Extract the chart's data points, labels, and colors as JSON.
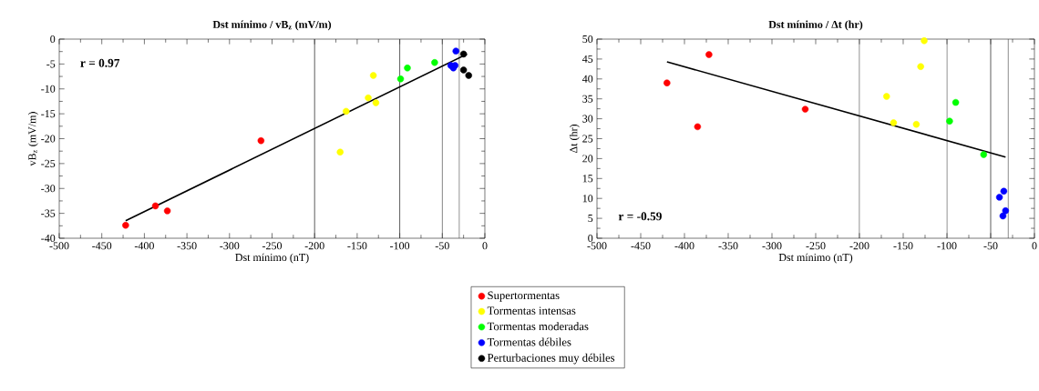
{
  "chart_data": [
    {
      "type": "scatter",
      "title": "Dst mínimo / vB$_{z}$ (mV/m)",
      "xlabel": "Dst mínimo (nT)",
      "ylabel": "vB$_{z}$ (mV/m)",
      "annotations": [
        "r = 0.97"
      ],
      "xlim": [
        -500,
        0
      ],
      "ylim": [
        -40,
        0
      ],
      "xticks": [
        -500,
        -450,
        -400,
        -350,
        -300,
        -250,
        -200,
        -150,
        -100,
        -50,
        0
      ],
      "yticks": [
        -40,
        -35,
        -30,
        -25,
        -20,
        -15,
        -10,
        -5,
        0
      ],
      "marker": "circle",
      "grid": false,
      "legend": "bottom",
      "ref_lines": [
        {
          "axis": "x",
          "value": -200
        },
        {
          "axis": "x",
          "value": -100
        },
        {
          "axis": "x",
          "value": -50
        },
        {
          "axis": "x",
          "value": -30
        }
      ],
      "series": [
        {
          "name": "Supertormentas",
          "color": "#ff0000",
          "x": [
            -422,
            -387,
            -373,
            -263
          ],
          "values": [
            -37.4,
            -33.5,
            -34.5,
            -20.4
          ]
        },
        {
          "name": "Tormentas intensas",
          "color": "#ffff00",
          "x": [
            -170,
            -163,
            -137,
            -128,
            -131
          ],
          "values": [
            -22.7,
            -14.5,
            -11.8,
            -12.8,
            -7.3
          ]
        },
        {
          "name": "Tormentas moderadas",
          "color": "#00ff00",
          "x": [
            -99,
            -91,
            -59
          ],
          "values": [
            -8.0,
            -5.8,
            -4.7
          ]
        },
        {
          "name": "Tormentas débiles",
          "color": "#0000ff",
          "x": [
            -34,
            -40,
            -37,
            -35
          ],
          "values": [
            -2.4,
            -5.3,
            -5.8,
            -5.3
          ]
        },
        {
          "name": "Perturbaciones muy débiles",
          "color": "#000000",
          "x": [
            -25,
            -25,
            -19
          ],
          "values": [
            -3.0,
            -6.2,
            -7.3
          ]
        },
        {
          "type": "line",
          "marker": "none",
          "color": "#000000",
          "x": [
            -422,
            -21
          ],
          "values": [
            -36.5,
            -3.0
          ]
        }
      ]
    },
    {
      "type": "scatter",
      "title": "Dst mínimo / Δt (hr)",
      "xlabel": "Dst mínimo (nT)",
      "ylabel": "Δt (hr)",
      "annotations": [
        "r = -0.59"
      ],
      "xlim": [
        -500,
        0
      ],
      "ylim": [
        0,
        50
      ],
      "xticks": [
        -500,
        -450,
        -400,
        -350,
        -300,
        -250,
        -200,
        -150,
        -100,
        -50,
        0
      ],
      "yticks": [
        0,
        5,
        10,
        15,
        20,
        25,
        30,
        35,
        40,
        45,
        50
      ],
      "marker": "circle",
      "grid": false,
      "ref_lines": [
        {
          "axis": "x",
          "value": -200
        },
        {
          "axis": "x",
          "value": -100
        },
        {
          "axis": "x",
          "value": -50
        },
        {
          "axis": "x",
          "value": -30
        }
      ],
      "series": [
        {
          "color": "#ff0000",
          "x": [
            -420,
            -385,
            -372,
            -262
          ],
          "values": [
            39.0,
            28.0,
            46.1,
            32.4
          ]
        },
        {
          "color": "#ffff00",
          "x": [
            -169,
            -161,
            -135,
            -130,
            -126
          ],
          "values": [
            35.6,
            29.0,
            28.6,
            43.1,
            49.6
          ]
        },
        {
          "color": "#00ff00",
          "x": [
            -97,
            -90,
            -58
          ],
          "values": [
            29.4,
            34.1,
            21.0
          ]
        },
        {
          "color": "#0000ff",
          "x": [
            -40,
            -35,
            -36,
            -33
          ],
          "values": [
            10.3,
            11.8,
            5.6,
            6.9
          ]
        },
        {
          "type": "line",
          "marker": "none",
          "color": "#000000",
          "x": [
            -420,
            -33
          ],
          "values": [
            44.3,
            20.4
          ]
        }
      ]
    }
  ]
}
